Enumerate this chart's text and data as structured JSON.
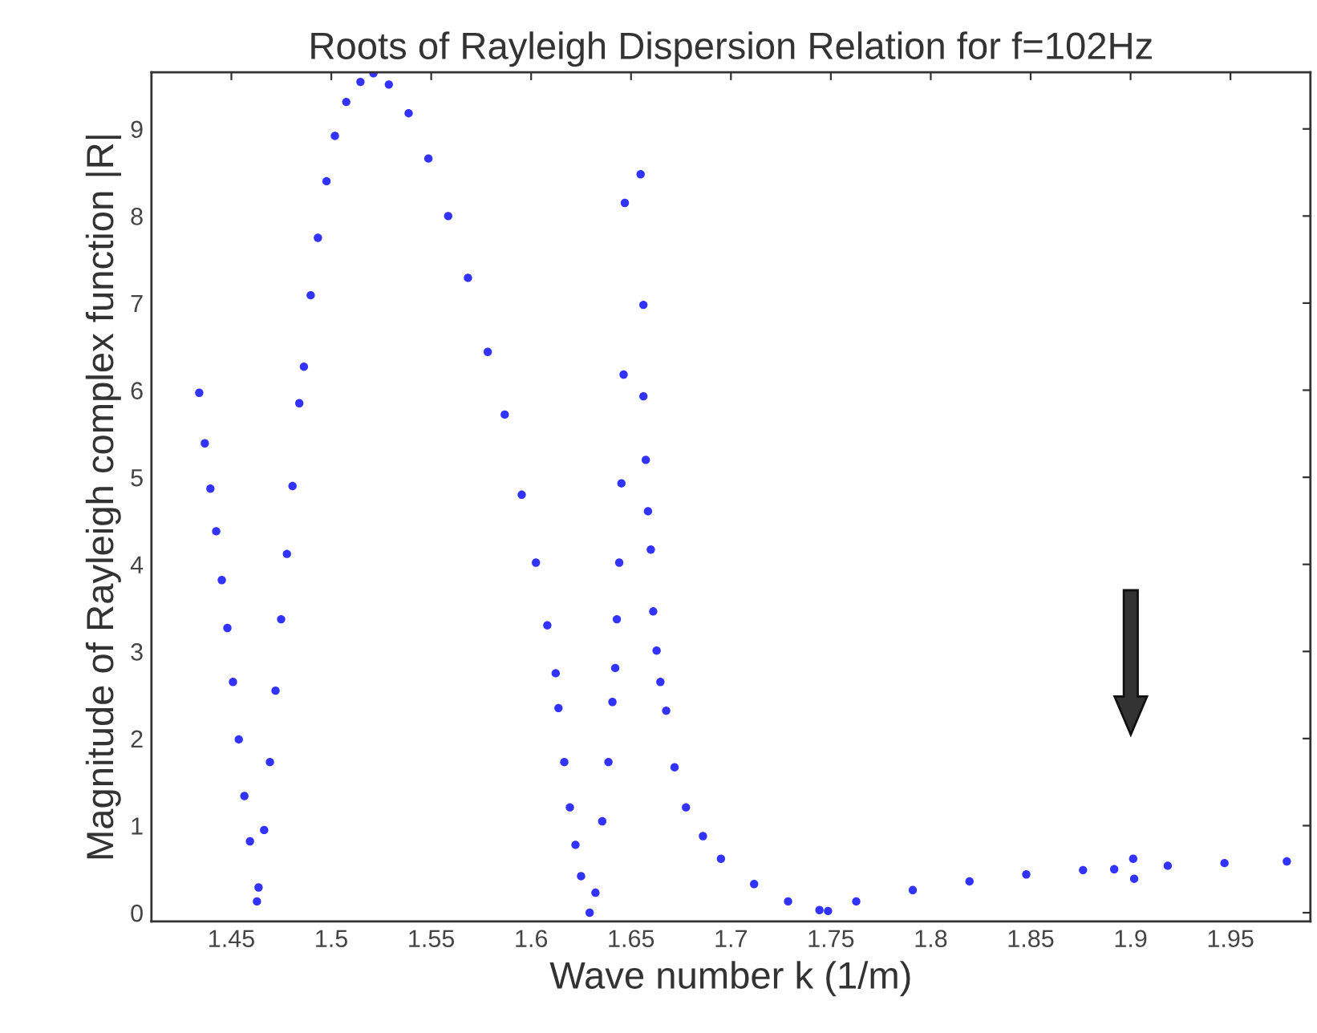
{
  "chart_data": {
    "type": "scatter",
    "title": "Roots of Rayleigh Dispersion Relation for f=102Hz",
    "xlabel": "Wave number k (1/m)",
    "ylabel": "Magnitude of Rayleigh complex function |R|",
    "series": [
      {
        "color": "#3333ff",
        "x": [
          1.4339,
          1.4367,
          1.4395,
          1.4424,
          1.4452,
          1.448,
          1.4508,
          1.4537,
          1.4565,
          1.4593,
          1.4628,
          1.4636,
          1.4664,
          1.4693,
          1.4721,
          1.4749,
          1.4778,
          1.4806,
          1.484,
          1.4863,
          1.4897,
          1.4933,
          1.4976,
          1.5018,
          1.5075,
          1.5146,
          1.5211,
          1.5288,
          1.5387,
          1.5486,
          1.5585,
          1.5684,
          1.5783,
          1.5868,
          1.5953,
          1.6024,
          1.6081,
          1.6123,
          1.6137,
          1.6166,
          1.6194,
          1.6222,
          1.625,
          1.6293,
          1.6322,
          1.6356,
          1.6387,
          1.6407,
          1.6421,
          1.6429,
          1.6441,
          1.6452,
          1.6463,
          1.6469,
          1.6548,
          1.6562,
          1.6562,
          1.6574,
          1.6585,
          1.6599,
          1.6611,
          1.6628,
          1.6647,
          1.6676,
          1.6718,
          1.6775,
          1.686,
          1.695,
          1.7116,
          1.7286,
          1.7443,
          1.7486,
          1.7627,
          1.791,
          1.8194,
          1.8478,
          1.8762,
          1.8918,
          1.9013,
          1.9018,
          1.9186,
          1.947,
          1.9782
        ],
        "values": [
          5.97,
          5.39,
          4.87,
          4.38,
          3.82,
          3.27,
          2.65,
          1.99,
          1.34,
          0.82,
          0.13,
          0.29,
          0.95,
          1.73,
          2.55,
          3.37,
          4.12,
          4.9,
          5.85,
          6.27,
          7.09,
          7.75,
          8.4,
          8.92,
          9.31,
          9.54,
          9.64,
          9.51,
          9.18,
          8.66,
          8.0,
          7.29,
          6.44,
          5.72,
          4.8,
          4.02,
          3.3,
          2.75,
          2.35,
          1.73,
          1.21,
          0.78,
          0.42,
          0.0,
          0.23,
          1.05,
          1.73,
          2.42,
          2.81,
          3.37,
          4.02,
          4.93,
          6.18,
          8.15,
          8.48,
          6.98,
          5.93,
          5.2,
          4.61,
          4.17,
          3.46,
          3.01,
          2.65,
          2.32,
          1.67,
          1.21,
          0.88,
          0.62,
          0.33,
          0.13,
          0.03,
          0.02,
          0.13,
          0.26,
          0.36,
          0.44,
          0.49,
          0.5,
          0.62,
          0.39,
          0.54,
          0.57,
          0.59
        ]
      }
    ],
    "marker": "circle",
    "grid": false,
    "xlim": [
      1.41,
      1.99
    ],
    "xticks": [
      1.45,
      1.5,
      1.55,
      1.6,
      1.65,
      1.7,
      1.75,
      1.8,
      1.85,
      1.9,
      1.95
    ],
    "ylim": [
      -0.1,
      9.65
    ],
    "yticks": [
      0,
      1,
      2,
      3,
      4,
      5,
      6,
      7,
      8,
      9
    ]
  }
}
